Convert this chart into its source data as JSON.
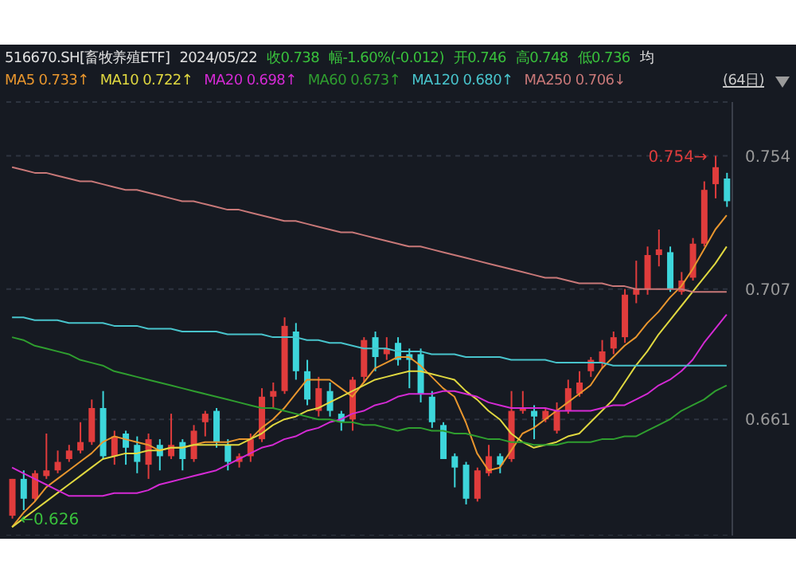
{
  "chart_data": {
    "type": "candlestick",
    "title": "516670.SH[畜牧养殖ETF]",
    "annotations": [
      "2024/05/22",
      "收0.738",
      "幅-1.60%(-0.012)",
      "开0.746",
      "高0.748",
      "低0.736",
      "均",
      "(64日)",
      "0.754→",
      "←0.626"
    ],
    "categories": [
      null,
      null,
      null,
      null,
      null,
      null,
      null,
      null,
      null,
      null,
      null,
      null,
      null,
      null,
      null,
      null,
      null,
      null,
      null,
      null,
      null,
      null,
      null,
      null,
      null,
      null,
      null,
      null,
      null,
      null,
      null,
      null,
      null,
      null,
      null,
      null,
      null,
      null,
      null,
      null,
      null,
      null,
      null,
      null,
      null,
      null,
      null,
      null,
      null,
      null,
      null,
      null,
      null,
      null,
      null,
      null,
      null,
      null,
      null,
      null,
      null,
      null,
      null,
      null
    ],
    "ohlc": [
      [
        0.627,
        0.64,
        0.626,
        0.64
      ],
      [
        0.64,
        0.643,
        0.629,
        0.633
      ],
      [
        0.633,
        0.643,
        0.632,
        0.642
      ],
      [
        0.641,
        0.656,
        0.64,
        0.643
      ],
      [
        0.643,
        0.65,
        0.642,
        0.646
      ],
      [
        0.647,
        0.652,
        0.646,
        0.65
      ],
      [
        0.65,
        0.66,
        0.649,
        0.653
      ],
      [
        0.653,
        0.668,
        0.652,
        0.665
      ],
      [
        0.665,
        0.671,
        0.647,
        0.648
      ],
      [
        0.648,
        0.657,
        0.645,
        0.655
      ],
      [
        0.656,
        0.657,
        0.645,
        0.651
      ],
      [
        0.652,
        0.655,
        0.642,
        0.646
      ],
      [
        0.645,
        0.656,
        0.64,
        0.654
      ],
      [
        0.652,
        0.654,
        0.643,
        0.648
      ],
      [
        0.648,
        0.663,
        0.647,
        0.652
      ],
      [
        0.653,
        0.654,
        0.643,
        0.647
      ],
      [
        0.647,
        0.659,
        0.646,
        0.657
      ],
      [
        0.66,
        0.664,
        0.655,
        0.663
      ],
      [
        0.664,
        0.665,
        0.651,
        0.653
      ],
      [
        0.652,
        0.654,
        0.643,
        0.646
      ],
      [
        0.646,
        0.649,
        0.644,
        0.648
      ],
      [
        0.648,
        0.656,
        0.646,
        0.654
      ],
      [
        0.654,
        0.672,
        0.653,
        0.669
      ],
      [
        0.669,
        0.674,
        0.665,
        0.671
      ],
      [
        0.671,
        0.697,
        0.67,
        0.694
      ],
      [
        0.692,
        0.695,
        0.675,
        0.678
      ],
      [
        0.678,
        0.682,
        0.666,
        0.668
      ],
      [
        0.664,
        0.676,
        0.662,
        0.672
      ],
      [
        0.671,
        0.674,
        0.662,
        0.664
      ],
      [
        0.663,
        0.664,
        0.657,
        0.66
      ],
      [
        0.661,
        0.676,
        0.657,
        0.675
      ],
      [
        0.676,
        0.69,
        0.674,
        0.689
      ],
      [
        0.69,
        0.692,
        0.678,
        0.683
      ],
      [
        0.684,
        0.69,
        0.682,
        0.686
      ],
      [
        0.688,
        0.69,
        0.68,
        0.682
      ],
      [
        0.684,
        0.686,
        0.672,
        0.682
      ],
      [
        0.684,
        0.686,
        0.667,
        0.67
      ],
      [
        0.669,
        0.671,
        0.658,
        0.66
      ],
      [
        0.659,
        0.66,
        0.647,
        0.647
      ],
      [
        0.648,
        0.649,
        0.637,
        0.644
      ],
      [
        0.645,
        0.646,
        0.631,
        0.633
      ],
      [
        0.633,
        0.644,
        0.632,
        0.643
      ],
      [
        0.642,
        0.652,
        0.641,
        0.648
      ],
      [
        0.648,
        0.649,
        0.642,
        0.645
      ],
      [
        0.647,
        0.671,
        0.646,
        0.664
      ],
      [
        0.664,
        0.671,
        0.663,
        0.665
      ],
      [
        0.664,
        0.666,
        0.654,
        0.662
      ],
      [
        0.661,
        0.665,
        0.66,
        0.664
      ],
      [
        0.657,
        0.667,
        0.656,
        0.664
      ],
      [
        0.664,
        0.675,
        0.663,
        0.672
      ],
      [
        0.67,
        0.678,
        0.669,
        0.674
      ],
      [
        0.678,
        0.683,
        0.676,
        0.682
      ],
      [
        0.681,
        0.689,
        0.679,
        0.685
      ],
      [
        0.686,
        0.692,
        0.684,
        0.69
      ],
      [
        0.69,
        0.707,
        0.688,
        0.705
      ],
      [
        0.705,
        0.717,
        0.702,
        0.707
      ],
      [
        0.707,
        0.722,
        0.705,
        0.719
      ],
      [
        0.719,
        0.728,
        0.715,
        0.721
      ],
      [
        0.72,
        0.722,
        0.706,
        0.707
      ],
      [
        0.706,
        0.713,
        0.705,
        0.71
      ],
      [
        0.711,
        0.725,
        0.71,
        0.723
      ],
      [
        0.723,
        0.745,
        0.722,
        0.742
      ],
      [
        0.744,
        0.754,
        0.739,
        0.75
      ],
      [
        0.746,
        0.748,
        0.736,
        0.738
      ]
    ],
    "colors": [
      "#e03c3c",
      "#3dd6db",
      "#e03c3c",
      "#e03c3c",
      "#e03c3c",
      "#e03c3c",
      "#e03c3c",
      "#e03c3c",
      "#3dd6db",
      "#e03c3c",
      "#3dd6db",
      "#3dd6db",
      "#e03c3c",
      "#3dd6db",
      "#e03c3c",
      "#3dd6db",
      "#e03c3c",
      "#e03c3c",
      "#3dd6db",
      "#3dd6db",
      "#e03c3c",
      "#e03c3c",
      "#e03c3c",
      "#e03c3c",
      "#e03c3c",
      "#3dd6db",
      "#3dd6db",
      "#e03c3c",
      "#3dd6db",
      "#3dd6db",
      "#e03c3c",
      "#e03c3c",
      "#3dd6db",
      "#e03c3c",
      "#3dd6db",
      "#3dd6db",
      "#3dd6db",
      "#3dd6db",
      "#3dd6db",
      "#3dd6db",
      "#3dd6db",
      "#e03c3c",
      "#e03c3c",
      "#3dd6db",
      "#e03c3c",
      "#e03c3c",
      "#3dd6db",
      "#e03c3c",
      "#e03c3c",
      "#e03c3c",
      "#e03c3c",
      "#e03c3c",
      "#e03c3c",
      "#e03c3c",
      "#e03c3c",
      "#e03c3c",
      "#e03c3c",
      "#e03c3c",
      "#3dd6db",
      "#e03c3c",
      "#e03c3c",
      "#e03c3c",
      "#e03c3c",
      "#3dd6db"
    ],
    "series": [
      {
        "type": "line",
        "name": "MA5 0.733↑",
        "color": "#e8962e",
        "values": [
          0.623,
          0.628,
          0.632,
          0.637,
          0.64,
          0.643,
          0.646,
          0.649,
          0.653,
          0.655,
          0.654,
          0.653,
          0.652,
          0.65,
          0.651,
          0.651,
          0.652,
          0.653,
          0.653,
          0.653,
          0.654,
          0.654,
          0.658,
          0.661,
          0.665,
          0.67,
          0.675,
          0.675,
          0.675,
          0.672,
          0.669,
          0.674,
          0.679,
          0.681,
          0.683,
          0.683,
          0.68,
          0.676,
          0.672,
          0.669,
          0.66,
          0.649,
          0.643,
          0.644,
          0.65,
          0.656,
          0.658,
          0.661,
          0.664,
          0.667,
          0.67,
          0.673,
          0.679,
          0.683,
          0.687,
          0.69,
          0.695,
          0.699,
          0.704,
          0.708,
          0.714,
          0.721,
          0.728,
          0.733
        ]
      },
      {
        "type": "line",
        "name": "MA10 0.722↑",
        "color": "#e0d840",
        "values": [
          0.623,
          0.626,
          0.629,
          0.632,
          0.635,
          0.638,
          0.641,
          0.644,
          0.647,
          0.648,
          0.649,
          0.649,
          0.65,
          0.65,
          0.651,
          0.651,
          0.652,
          0.652,
          0.652,
          0.652,
          0.652,
          0.654,
          0.656,
          0.659,
          0.661,
          0.662,
          0.664,
          0.665,
          0.667,
          0.669,
          0.671,
          0.673,
          0.675,
          0.676,
          0.677,
          0.678,
          0.678,
          0.677,
          0.676,
          0.675,
          0.671,
          0.668,
          0.664,
          0.661,
          0.656,
          0.653,
          0.651,
          0.652,
          0.653,
          0.655,
          0.656,
          0.66,
          0.664,
          0.668,
          0.674,
          0.68,
          0.685,
          0.691,
          0.696,
          0.701,
          0.706,
          0.711,
          0.716,
          0.722
        ]
      },
      {
        "type": "line",
        "name": "MA20 0.698↑",
        "color": "#d42ad4",
        "values": [
          0.644,
          0.642,
          0.64,
          0.638,
          0.636,
          0.634,
          0.634,
          0.634,
          0.634,
          0.635,
          0.635,
          0.635,
          0.636,
          0.638,
          0.639,
          0.64,
          0.641,
          0.642,
          0.643,
          0.645,
          0.647,
          0.649,
          0.651,
          0.652,
          0.654,
          0.655,
          0.657,
          0.658,
          0.66,
          0.661,
          0.663,
          0.664,
          0.666,
          0.667,
          0.669,
          0.67,
          0.67,
          0.67,
          0.671,
          0.671,
          0.67,
          0.669,
          0.667,
          0.666,
          0.665,
          0.665,
          0.665,
          0.665,
          0.664,
          0.664,
          0.664,
          0.664,
          0.665,
          0.666,
          0.666,
          0.668,
          0.67,
          0.673,
          0.675,
          0.678,
          0.682,
          0.688,
          0.693,
          0.698
        ]
      },
      {
        "type": "line",
        "name": "MA60 0.673↑",
        "color": "#2f9e2f",
        "values": [
          0.69,
          0.689,
          0.687,
          0.686,
          0.685,
          0.684,
          0.682,
          0.681,
          0.68,
          0.678,
          0.677,
          0.676,
          0.675,
          0.674,
          0.673,
          0.672,
          0.671,
          0.67,
          0.669,
          0.668,
          0.667,
          0.666,
          0.665,
          0.665,
          0.664,
          0.663,
          0.662,
          0.661,
          0.661,
          0.66,
          0.66,
          0.659,
          0.659,
          0.658,
          0.657,
          0.658,
          0.658,
          0.657,
          0.657,
          0.656,
          0.656,
          0.655,
          0.654,
          0.654,
          0.653,
          0.653,
          0.652,
          0.652,
          0.652,
          0.653,
          0.653,
          0.653,
          0.654,
          0.654,
          0.655,
          0.655,
          0.657,
          0.659,
          0.661,
          0.664,
          0.666,
          0.668,
          0.671,
          0.673
        ]
      },
      {
        "type": "line",
        "name": "MA120 0.680↑",
        "color": "#48c4cc",
        "values": [
          0.697,
          0.697,
          0.696,
          0.696,
          0.696,
          0.695,
          0.695,
          0.695,
          0.695,
          0.694,
          0.694,
          0.694,
          0.693,
          0.693,
          0.693,
          0.692,
          0.692,
          0.692,
          0.692,
          0.691,
          0.691,
          0.691,
          0.691,
          0.69,
          0.69,
          0.69,
          0.689,
          0.689,
          0.688,
          0.688,
          0.687,
          0.686,
          0.686,
          0.686,
          0.685,
          0.685,
          0.685,
          0.684,
          0.684,
          0.684,
          0.683,
          0.683,
          0.683,
          0.683,
          0.682,
          0.682,
          0.682,
          0.682,
          0.681,
          0.681,
          0.681,
          0.681,
          0.681,
          0.68,
          0.68,
          0.68,
          0.68,
          0.68,
          0.68,
          0.68,
          0.68,
          0.68,
          0.68,
          0.68
        ]
      },
      {
        "type": "line",
        "name": "MA250 0.706↓",
        "color": "#c87878",
        "values": [
          0.75,
          0.749,
          0.748,
          0.748,
          0.747,
          0.746,
          0.745,
          0.745,
          0.744,
          0.743,
          0.742,
          0.742,
          0.741,
          0.74,
          0.739,
          0.738,
          0.738,
          0.737,
          0.736,
          0.735,
          0.735,
          0.734,
          0.733,
          0.732,
          0.731,
          0.731,
          0.73,
          0.729,
          0.728,
          0.727,
          0.727,
          0.726,
          0.725,
          0.724,
          0.723,
          0.722,
          0.722,
          0.721,
          0.72,
          0.719,
          0.718,
          0.717,
          0.716,
          0.715,
          0.714,
          0.713,
          0.712,
          0.711,
          0.711,
          0.71,
          0.709,
          0.709,
          0.709,
          0.708,
          0.708,
          0.707,
          0.707,
          0.707,
          0.707,
          0.707,
          0.706,
          0.706,
          0.706,
          0.706
        ]
      }
    ],
    "ylim": [
      0.62,
      0.773
    ],
    "yticks": [
      0.754,
      0.707,
      0.661
    ],
    "tick_labels": "y",
    "grid": "y",
    "marker": "none",
    "line_style": "solid"
  }
}
